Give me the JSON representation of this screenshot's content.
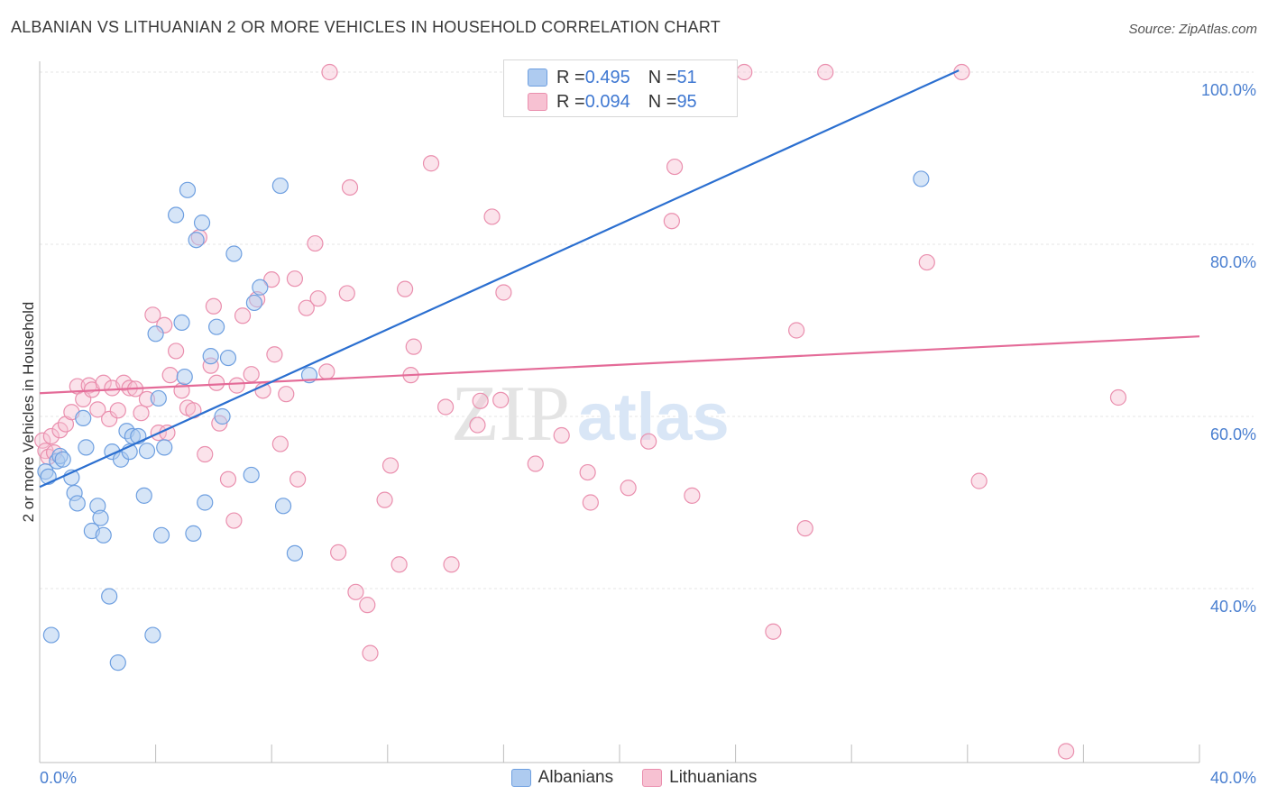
{
  "header": {
    "title": "ALBANIAN VS LITHUANIAN 2 OR MORE VEHICLES IN HOUSEHOLD CORRELATION CHART",
    "source": "Source: ZipAtlas.com"
  },
  "legend": {
    "rows": [
      {
        "r_label": "R = ",
        "r_value": "0.495",
        "n_label": "N = ",
        "n_value": "51"
      },
      {
        "r_label": "R = ",
        "r_value": "0.094",
        "n_label": "N = ",
        "n_value": "95"
      }
    ]
  },
  "bottom_legend": [
    "Albanians",
    "Lithuanians"
  ],
  "watermark": {
    "zip": "ZIP",
    "atlas": "atlas"
  },
  "colors": {
    "albanians_fill": "#aecbf0",
    "albanians_stroke": "#6e9fe0",
    "albanians_line": "#2b6fd0",
    "lithuanians_fill": "#f7c1d2",
    "lithuanians_stroke": "#ea8fae",
    "lithuanians_line": "#e46b98",
    "tick_text": "#4a7fd0",
    "grid": "#e4e4e4"
  },
  "chart_data": {
    "type": "scatter",
    "title": "ALBANIAN VS LITHUANIAN 2 OR MORE VEHICLES IN HOUSEHOLD CORRELATION CHART",
    "xlabel": "",
    "ylabel": "2 or more Vehicles in Household",
    "xlim": [
      0,
      40
    ],
    "ylim": [
      20,
      102
    ],
    "x_tick_labels": [
      "0.0%",
      "40.0%"
    ],
    "y_ticks": [
      40,
      60,
      80,
      100
    ],
    "y_tick_labels": [
      "40.0%",
      "60.0%",
      "80.0%",
      "100.0%"
    ],
    "grid": true,
    "legend_position": "top-center",
    "series": [
      {
        "name": "Albanians",
        "r": 0.495,
        "n": 51,
        "trend": {
          "x": [
            0,
            31.7
          ],
          "y": [
            51.8,
            100.2
          ]
        },
        "points": [
          [
            0.2,
            53.6
          ],
          [
            0.3,
            53.0
          ],
          [
            0.4,
            34.6
          ],
          [
            0.6,
            54.8
          ],
          [
            0.7,
            55.4
          ],
          [
            0.8,
            55.0
          ],
          [
            1.1,
            52.9
          ],
          [
            1.2,
            51.1
          ],
          [
            1.3,
            49.9
          ],
          [
            1.5,
            59.8
          ],
          [
            1.6,
            56.4
          ],
          [
            1.8,
            46.7
          ],
          [
            2.0,
            49.6
          ],
          [
            2.1,
            48.2
          ],
          [
            2.2,
            46.2
          ],
          [
            2.4,
            39.1
          ],
          [
            2.5,
            55.9
          ],
          [
            2.7,
            31.4
          ],
          [
            2.8,
            55.0
          ],
          [
            3.0,
            58.3
          ],
          [
            3.1,
            55.9
          ],
          [
            3.2,
            57.7
          ],
          [
            3.4,
            57.7
          ],
          [
            3.6,
            50.8
          ],
          [
            3.7,
            56.0
          ],
          [
            3.9,
            34.6
          ],
          [
            4.1,
            62.1
          ],
          [
            4.2,
            46.2
          ],
          [
            4.3,
            56.4
          ],
          [
            4.7,
            83.4
          ],
          [
            4.9,
            70.9
          ],
          [
            5.0,
            64.6
          ],
          [
            5.1,
            86.3
          ],
          [
            5.3,
            46.4
          ],
          [
            5.4,
            80.5
          ],
          [
            5.6,
            82.5
          ],
          [
            5.7,
            50.0
          ],
          [
            5.9,
            67.0
          ],
          [
            6.1,
            70.4
          ],
          [
            6.3,
            60.0
          ],
          [
            6.5,
            66.8
          ],
          [
            6.7,
            78.9
          ],
          [
            7.3,
            53.2
          ],
          [
            7.4,
            73.2
          ],
          [
            7.6,
            75.0
          ],
          [
            8.3,
            86.8
          ],
          [
            8.4,
            49.6
          ],
          [
            8.8,
            44.1
          ],
          [
            9.3,
            64.8
          ],
          [
            30.4,
            87.6
          ],
          [
            4.0,
            69.6
          ]
        ]
      },
      {
        "name": "Lithuanians",
        "r": 0.094,
        "n": 95,
        "trend": {
          "x": [
            0,
            40
          ],
          "y": [
            62.7,
            69.3
          ]
        },
        "points": [
          [
            0.1,
            57.2
          ],
          [
            0.2,
            56.0
          ],
          [
            0.3,
            55.3
          ],
          [
            0.4,
            57.7
          ],
          [
            0.5,
            55.8
          ],
          [
            0.7,
            58.4
          ],
          [
            0.9,
            59.1
          ],
          [
            1.1,
            60.5
          ],
          [
            1.3,
            63.5
          ],
          [
            1.5,
            62.0
          ],
          [
            1.7,
            63.6
          ],
          [
            1.8,
            63.1
          ],
          [
            2.0,
            60.8
          ],
          [
            2.2,
            63.9
          ],
          [
            2.4,
            59.7
          ],
          [
            2.5,
            63.3
          ],
          [
            2.7,
            60.7
          ],
          [
            2.9,
            63.9
          ],
          [
            3.1,
            63.3
          ],
          [
            3.3,
            63.2
          ],
          [
            3.5,
            60.4
          ],
          [
            3.7,
            62.0
          ],
          [
            3.9,
            71.8
          ],
          [
            4.1,
            58.1
          ],
          [
            4.3,
            70.6
          ],
          [
            4.5,
            64.8
          ],
          [
            4.7,
            67.6
          ],
          [
            4.9,
            63.0
          ],
          [
            5.1,
            61.0
          ],
          [
            5.3,
            60.7
          ],
          [
            5.5,
            80.8
          ],
          [
            5.7,
            55.6
          ],
          [
            5.9,
            65.9
          ],
          [
            6.0,
            72.8
          ],
          [
            6.2,
            59.2
          ],
          [
            6.5,
            52.7
          ],
          [
            6.7,
            47.9
          ],
          [
            6.8,
            63.6
          ],
          [
            7.0,
            71.7
          ],
          [
            7.3,
            64.9
          ],
          [
            7.5,
            73.6
          ],
          [
            7.7,
            63.0
          ],
          [
            8.0,
            75.9
          ],
          [
            8.1,
            67.2
          ],
          [
            8.3,
            56.8
          ],
          [
            8.5,
            62.6
          ],
          [
            8.8,
            76.0
          ],
          [
            8.9,
            52.7
          ],
          [
            9.2,
            72.6
          ],
          [
            9.5,
            80.1
          ],
          [
            9.6,
            73.7
          ],
          [
            9.9,
            65.2
          ],
          [
            10.0,
            100.0
          ],
          [
            10.3,
            44.2
          ],
          [
            10.6,
            74.3
          ],
          [
            10.7,
            86.6
          ],
          [
            10.9,
            39.6
          ],
          [
            11.3,
            38.1
          ],
          [
            11.4,
            32.5
          ],
          [
            11.9,
            50.3
          ],
          [
            12.1,
            54.3
          ],
          [
            12.4,
            42.8
          ],
          [
            12.6,
            74.8
          ],
          [
            12.8,
            64.8
          ],
          [
            12.9,
            68.1
          ],
          [
            13.5,
            89.4
          ],
          [
            14.0,
            61.1
          ],
          [
            14.2,
            42.8
          ],
          [
            15.1,
            59.0
          ],
          [
            15.2,
            61.8
          ],
          [
            15.6,
            83.2
          ],
          [
            16.0,
            74.4
          ],
          [
            17.1,
            54.5
          ],
          [
            17.8,
            100.0
          ],
          [
            18.0,
            57.8
          ],
          [
            18.9,
            53.5
          ],
          [
            19.0,
            50.0
          ],
          [
            20.3,
            51.7
          ],
          [
            21.0,
            57.1
          ],
          [
            21.8,
            82.7
          ],
          [
            21.9,
            89.0
          ],
          [
            22.5,
            50.8
          ],
          [
            24.3,
            100.0
          ],
          [
            25.3,
            35.0
          ],
          [
            26.1,
            70.0
          ],
          [
            26.4,
            47.0
          ],
          [
            27.1,
            100.0
          ],
          [
            30.6,
            77.9
          ],
          [
            31.8,
            100.0
          ],
          [
            32.4,
            52.5
          ],
          [
            35.4,
            21.1
          ],
          [
            37.2,
            62.2
          ],
          [
            4.4,
            58.1
          ],
          [
            6.1,
            63.9
          ],
          [
            15.9,
            61.9
          ]
        ]
      }
    ]
  }
}
